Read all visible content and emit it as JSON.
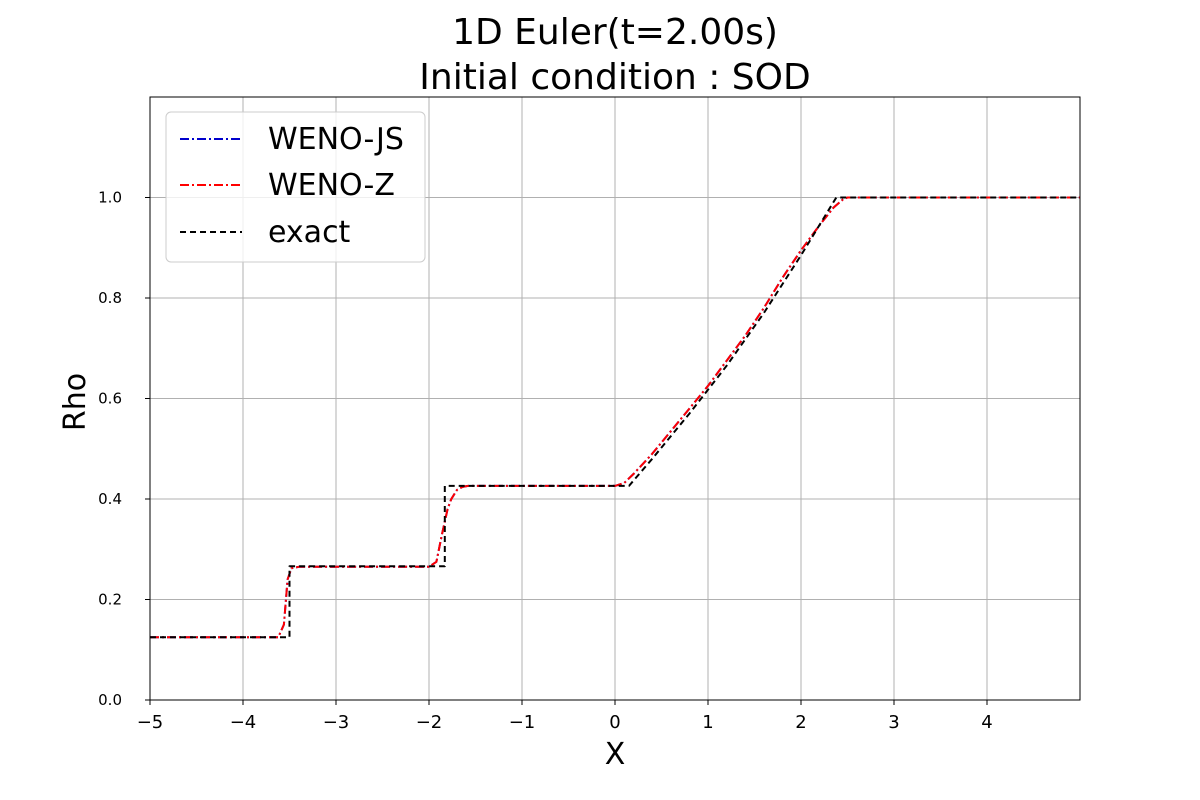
{
  "chart_data": {
    "type": "line",
    "title": "1D Euler(t=2.00s)",
    "subtitle": "Initial condition : SOD",
    "xlabel": "X",
    "ylabel": "Rho",
    "xlim": [
      -5,
      5
    ],
    "ylim": [
      0,
      1.2
    ],
    "xticks": [
      -5,
      -4,
      -3,
      -2,
      -1,
      0,
      1,
      2,
      3,
      4
    ],
    "xtick_labels": [
      "−5",
      "−4",
      "−3",
      "−2",
      "−1",
      "0",
      "1",
      "2",
      "3",
      "4"
    ],
    "yticks": [
      0,
      0.2,
      0.4,
      0.6,
      0.8,
      1.0
    ],
    "ytick_labels": [
      "0.0",
      "0.2",
      "0.4",
      "0.6",
      "0.8",
      "1.0"
    ],
    "grid": true,
    "legend_position": "top-left",
    "series": [
      {
        "name": "WENO-JS",
        "color": "#0000cc",
        "style": "dash-dot",
        "x": [
          -5.0,
          -3.62,
          -3.56,
          -3.52,
          -3.48,
          -3.4,
          -2.0,
          -1.92,
          -1.86,
          -1.8,
          -1.76,
          -1.7,
          -1.64,
          -1.58,
          -1.5,
          0.0,
          0.1,
          0.2,
          0.4,
          0.6,
          0.8,
          1.0,
          1.2,
          1.4,
          1.6,
          1.8,
          2.0,
          2.2,
          2.35,
          2.45,
          2.5,
          2.55,
          5.0
        ],
        "y": [
          0.125,
          0.125,
          0.15,
          0.24,
          0.262,
          0.265,
          0.265,
          0.275,
          0.33,
          0.38,
          0.4,
          0.418,
          0.424,
          0.426,
          0.426,
          0.426,
          0.432,
          0.45,
          0.49,
          0.535,
          0.58,
          0.625,
          0.675,
          0.725,
          0.78,
          0.84,
          0.895,
          0.945,
          0.98,
          0.996,
          1.0,
          1.0,
          1.0
        ]
      },
      {
        "name": "WENO-Z",
        "color": "#ff0000",
        "style": "dash-dot",
        "x": [
          -5.0,
          -3.62,
          -3.56,
          -3.52,
          -3.48,
          -3.4,
          -2.0,
          -1.92,
          -1.86,
          -1.8,
          -1.76,
          -1.7,
          -1.64,
          -1.58,
          -1.5,
          0.0,
          0.1,
          0.2,
          0.4,
          0.6,
          0.8,
          1.0,
          1.2,
          1.4,
          1.6,
          1.8,
          2.0,
          2.2,
          2.35,
          2.45,
          2.5,
          2.55,
          5.0
        ],
        "y": [
          0.125,
          0.125,
          0.15,
          0.24,
          0.262,
          0.265,
          0.265,
          0.275,
          0.33,
          0.38,
          0.4,
          0.418,
          0.424,
          0.426,
          0.426,
          0.426,
          0.432,
          0.45,
          0.49,
          0.535,
          0.58,
          0.625,
          0.675,
          0.725,
          0.78,
          0.84,
          0.895,
          0.945,
          0.98,
          0.996,
          1.0,
          1.0,
          1.0
        ]
      },
      {
        "name": "exact",
        "color": "#000000",
        "style": "dashed",
        "x": [
          -5.0,
          -3.5,
          -3.5,
          -1.83,
          -1.83,
          0.15,
          0.4,
          0.8,
          1.2,
          1.6,
          2.0,
          2.38,
          5.0
        ],
        "y": [
          0.125,
          0.125,
          0.266,
          0.266,
          0.426,
          0.426,
          0.48,
          0.57,
          0.665,
          0.77,
          0.885,
          1.0,
          1.0
        ]
      }
    ]
  }
}
